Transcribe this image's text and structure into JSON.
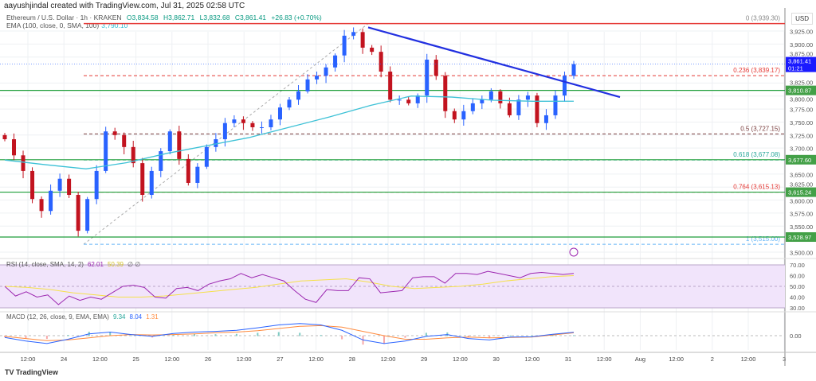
{
  "credit": "aayushjindal created with TradingView.com, Jul 31, 2025 02:58 UTC",
  "symbol": {
    "name": "Ethereum / U.S. Dollar · 1h · KRAKEN",
    "open": "O3,834.58",
    "high": "H3,862.71",
    "low": "L3,832.68",
    "close": "C3,861.41",
    "change": "+26.83 (+0.70%)"
  },
  "ema_legend": {
    "label": "EMA (100, close, 0, SMA, 100)",
    "value": "3,790.10"
  },
  "currency": "USD",
  "logo": "TradingView",
  "colors": {
    "up": "#2962ff",
    "down": "#c2131f",
    "ema": "#3cc1d6",
    "support": "#1e9e3a",
    "trend": "#2230e0",
    "rsi": "#9c27b0",
    "rsi_ma": "#f5e14a",
    "macd": "#2962ff",
    "signal": "#ff8a3d"
  },
  "chart_data": [
    {
      "type": "candlestick",
      "price_ticks": [
        "3,925.00",
        "3,900.00",
        "3,875.00",
        "3,825.00",
        "3,800.00",
        "3,775.00",
        "3,750.00",
        "3,725.00",
        "3,700.00",
        "3,650.00",
        "3,625.00",
        "3,600.00",
        "3,575.00",
        "3,550.00",
        "3,500.00"
      ],
      "price_tick_values": [
        3925,
        3900,
        3875,
        3825,
        3800,
        3775,
        3750,
        3725,
        3700,
        3650,
        3625,
        3600,
        3575,
        3550,
        3500
      ],
      "ylim": [
        3500,
        3945
      ],
      "x_ticks": [
        "12:00",
        "24",
        "12:00",
        "25",
        "12:00",
        "26",
        "12:00",
        "27",
        "12:00",
        "28",
        "12:00",
        "29",
        "12:00",
        "30",
        "12:00",
        "31",
        "12:00",
        "Aug",
        "12:00",
        "2",
        "12:00",
        "3"
      ],
      "closes": [
        3717,
        3686,
        3656,
        3602,
        3579,
        3618,
        3641,
        3610,
        3541,
        3602,
        3656,
        3732,
        3725,
        3702,
        3671,
        3610,
        3656,
        3694,
        3732,
        3679,
        3633,
        3664,
        3702,
        3717,
        3748,
        3755,
        3748,
        3740,
        3740,
        3755,
        3778,
        3793,
        3809,
        3832,
        3839,
        3855,
        3878,
        3916,
        3923,
        3893,
        3885,
        3847,
        3793,
        3793,
        3786,
        3801,
        3870,
        3839,
        3771,
        3755,
        3771,
        3786,
        3793,
        3809,
        3786,
        3763,
        3793,
        3801,
        3748,
        3763,
        3801,
        3839,
        3861.41
      ],
      "ema100": [
        3677,
        3668,
        3660,
        3672,
        3690,
        3705,
        3720,
        3740,
        3760,
        3782,
        3800,
        3798,
        3792,
        3790,
        3790.1
      ],
      "last_price": {
        "value": "3,861.41",
        "countdown": "01:21"
      },
      "ema_value": "3,790.10",
      "support_levels": [
        {
          "value": 3810.87,
          "label": "3,810.87"
        },
        {
          "value": 3677.6,
          "label": "3,677.60"
        },
        {
          "value": 3615.24,
          "label": "3,615.24"
        },
        {
          "value": 3528.97,
          "label": "3,528.97"
        }
      ],
      "fib_levels": [
        {
          "ratio": "0",
          "value": 3939.3,
          "label": "0 (3,939.30)",
          "color": "#888"
        },
        {
          "ratio": "0.236",
          "value": 3839.17,
          "label": "0.236 (3,839.17)",
          "color": "#e53935"
        },
        {
          "ratio": "0.5",
          "value": 3727.15,
          "label": "0.5 (3,727.15)",
          "color": "#7b3f3f"
        },
        {
          "ratio": "0.618",
          "value": 3677.08,
          "label": "0.618 (3,677.08)",
          "color": "#26a69a"
        },
        {
          "ratio": "0.764",
          "value": 3615.13,
          "label": "0.764 (3,615.13)",
          "color": "#e53935"
        },
        {
          "ratio": "1",
          "value": 3515.0,
          "label": "1 (3,515.00)",
          "color": "#64b5f6"
        }
      ],
      "trendline": {
        "from": 3932,
        "to": 3798
      }
    },
    {
      "type": "line",
      "title": "RSI (14, close, SMA, 14, 2)",
      "rsi_value": "62.01",
      "ma_value": "50.39",
      "extra": "∅ ∅",
      "ticks": [
        "70.00",
        "60.00",
        "50.00",
        "40.00",
        "30.00"
      ],
      "ylim": [
        30,
        70
      ],
      "rsi": [
        50,
        41,
        45,
        40,
        42,
        33,
        41,
        37,
        40,
        38,
        44,
        50,
        51,
        49,
        40,
        39,
        48,
        49,
        46,
        52,
        55,
        57,
        62,
        58,
        61,
        58,
        55,
        46,
        38,
        35,
        47,
        46,
        46,
        58,
        57,
        44,
        45,
        46,
        58,
        59,
        59,
        53,
        62,
        62,
        61,
        64,
        62,
        60,
        58,
        62,
        63,
        62,
        61,
        62
      ],
      "rsi_ma": [
        50,
        49,
        47,
        44,
        42,
        40,
        40,
        41,
        43,
        45,
        47,
        49,
        52,
        55,
        56,
        57,
        54,
        50,
        48,
        49,
        50,
        52,
        55,
        57,
        59,
        60
      ]
    },
    {
      "type": "line",
      "title": "MACD (12, 26, close, 9, EMA, EMA)",
      "macd_value": "9.34",
      "signal_value": "8.04",
      "hist_value": "1.31",
      "ticks": [
        "0.00"
      ],
      "macd": [
        -5,
        -15,
        -22,
        -10,
        5,
        10,
        3,
        -2,
        6,
        10,
        12,
        15,
        22,
        30,
        34,
        30,
        15,
        -12,
        -22,
        -15,
        -2,
        3,
        -8,
        -12,
        -4,
        -3,
        4,
        9.34
      ],
      "signal": [
        -2,
        -8,
        -14,
        -12,
        -6,
        0,
        3,
        2,
        3,
        5,
        8,
        10,
        14,
        20,
        26,
        28,
        24,
        12,
        0,
        -10,
        -10,
        -6,
        -4,
        -6,
        -5,
        -4,
        2,
        8.04
      ]
    }
  ]
}
